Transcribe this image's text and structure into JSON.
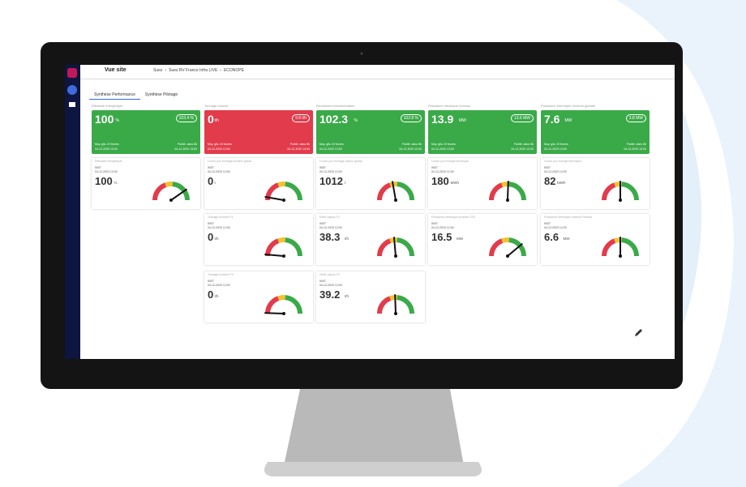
{
  "header": {
    "title": "Vue site",
    "breadcrumb": [
      "Suez",
      "Suez RV France Infra LIVE",
      "ECONOPE"
    ]
  },
  "tabs": [
    "Synthèse Performance",
    "Synthèse Pilotage"
  ],
  "kpis": [
    {
      "label": "Efficacité énergétique",
      "value": "100",
      "unit": "%",
      "badge": "103.4 %",
      "left": "Moy. glis. 8 Heures",
      "left_date": "04-12-2020 13:00",
      "right": "Publié. dans 8h",
      "right_date": "04-12-2020 13:00",
      "status": "ok"
    },
    {
      "label": "Tonnage évacué",
      "value": "0",
      "unit": "t/h",
      "badge": "9.8 t/h",
      "left": "Moy. glis. 8 Heures",
      "left_date": "04-12-2020 13:00",
      "right": "Publié. dans 8h",
      "right_date": "04-12-2020 13:00",
      "status": "alert"
    },
    {
      "label": "Rendement transformation",
      "value": "102.3",
      "unit": "%",
      "badge": "102.8 %",
      "left": "Moy. glis. 8 Heures",
      "left_date": "04-12-2020 13:00",
      "right": "Publié. dans 8h",
      "right_date": "04-12-2020 13:00",
      "status": "ok"
    },
    {
      "label": "Puissance électrique revenue",
      "value": "13.9",
      "unit": "MW",
      "badge": "13.6 MW",
      "left": "Moy. glis. 8 Heures",
      "left_date": "04-12-2020 13:00",
      "right": "Publié. dans 8h",
      "right_date": "04-12-2020 13:00",
      "status": "ok"
    },
    {
      "label": "Puissance thermique revenue globale",
      "value": "7.6",
      "unit": "MW",
      "badge": "3.8 MW",
      "left": "Moy. glis. 8 Heures",
      "left_date": "04-12-2020 13:00",
      "right": "Publié. dans 8h",
      "right_date": "04-12-2020 13:00",
      "status": "ok"
    }
  ],
  "gauges": [
    {
      "label": "Efficacité énergétique",
      "kind": "INST",
      "date": "04-12-2020 12:00",
      "value": "100",
      "unit": "%"
    },
    {
      "label": "Cumul jour tonnage incinéré global",
      "kind": "INST",
      "date": "04-12-2020 12:00",
      "value": "0",
      "unit": "t"
    },
    {
      "label": "Cumul jour tonnage vapeur global",
      "kind": "INST",
      "date": "04-12-2020 12:00",
      "value": "1012",
      "unit": "t"
    },
    {
      "label": "Cumul jour énergie électrique",
      "kind": "INST",
      "date": "04-12-2020 12:00",
      "value": "180",
      "unit": "MWh"
    },
    {
      "label": "Cumul jour énergie thermique",
      "kind": "INST",
      "date": "04-12-2020 12:00",
      "value": "82",
      "unit": "MWh"
    },
    {
      "label": "Tonnage incinéré F1",
      "kind": "INST",
      "date": "04-12-2020 12:00",
      "value": "0",
      "unit": "t/h"
    },
    {
      "label": "Débit vapeur F1",
      "kind": "INST",
      "date": "04-12-2020 12:00",
      "value": "38.3",
      "unit": "t/h"
    },
    {
      "label": "Puissance électrique produite GTA",
      "kind": "INST",
      "date": "04-12-2020 12:00",
      "value": "16.5",
      "unit": "MW"
    },
    {
      "label": "Puissance thermique revenue Réseau",
      "kind": "INST",
      "date": "04-12-2020 12:00",
      "value": "6.6",
      "unit": "MW"
    },
    {
      "label": "Tonnage incinéré F2",
      "kind": "INST",
      "date": "04-12-2020 12:00",
      "value": "0",
      "unit": "t/h"
    },
    {
      "label": "Débit vapeur F2",
      "kind": "INST",
      "date": "04-12-2020 12:00",
      "value": "39.2",
      "unit": "t/h"
    }
  ]
}
